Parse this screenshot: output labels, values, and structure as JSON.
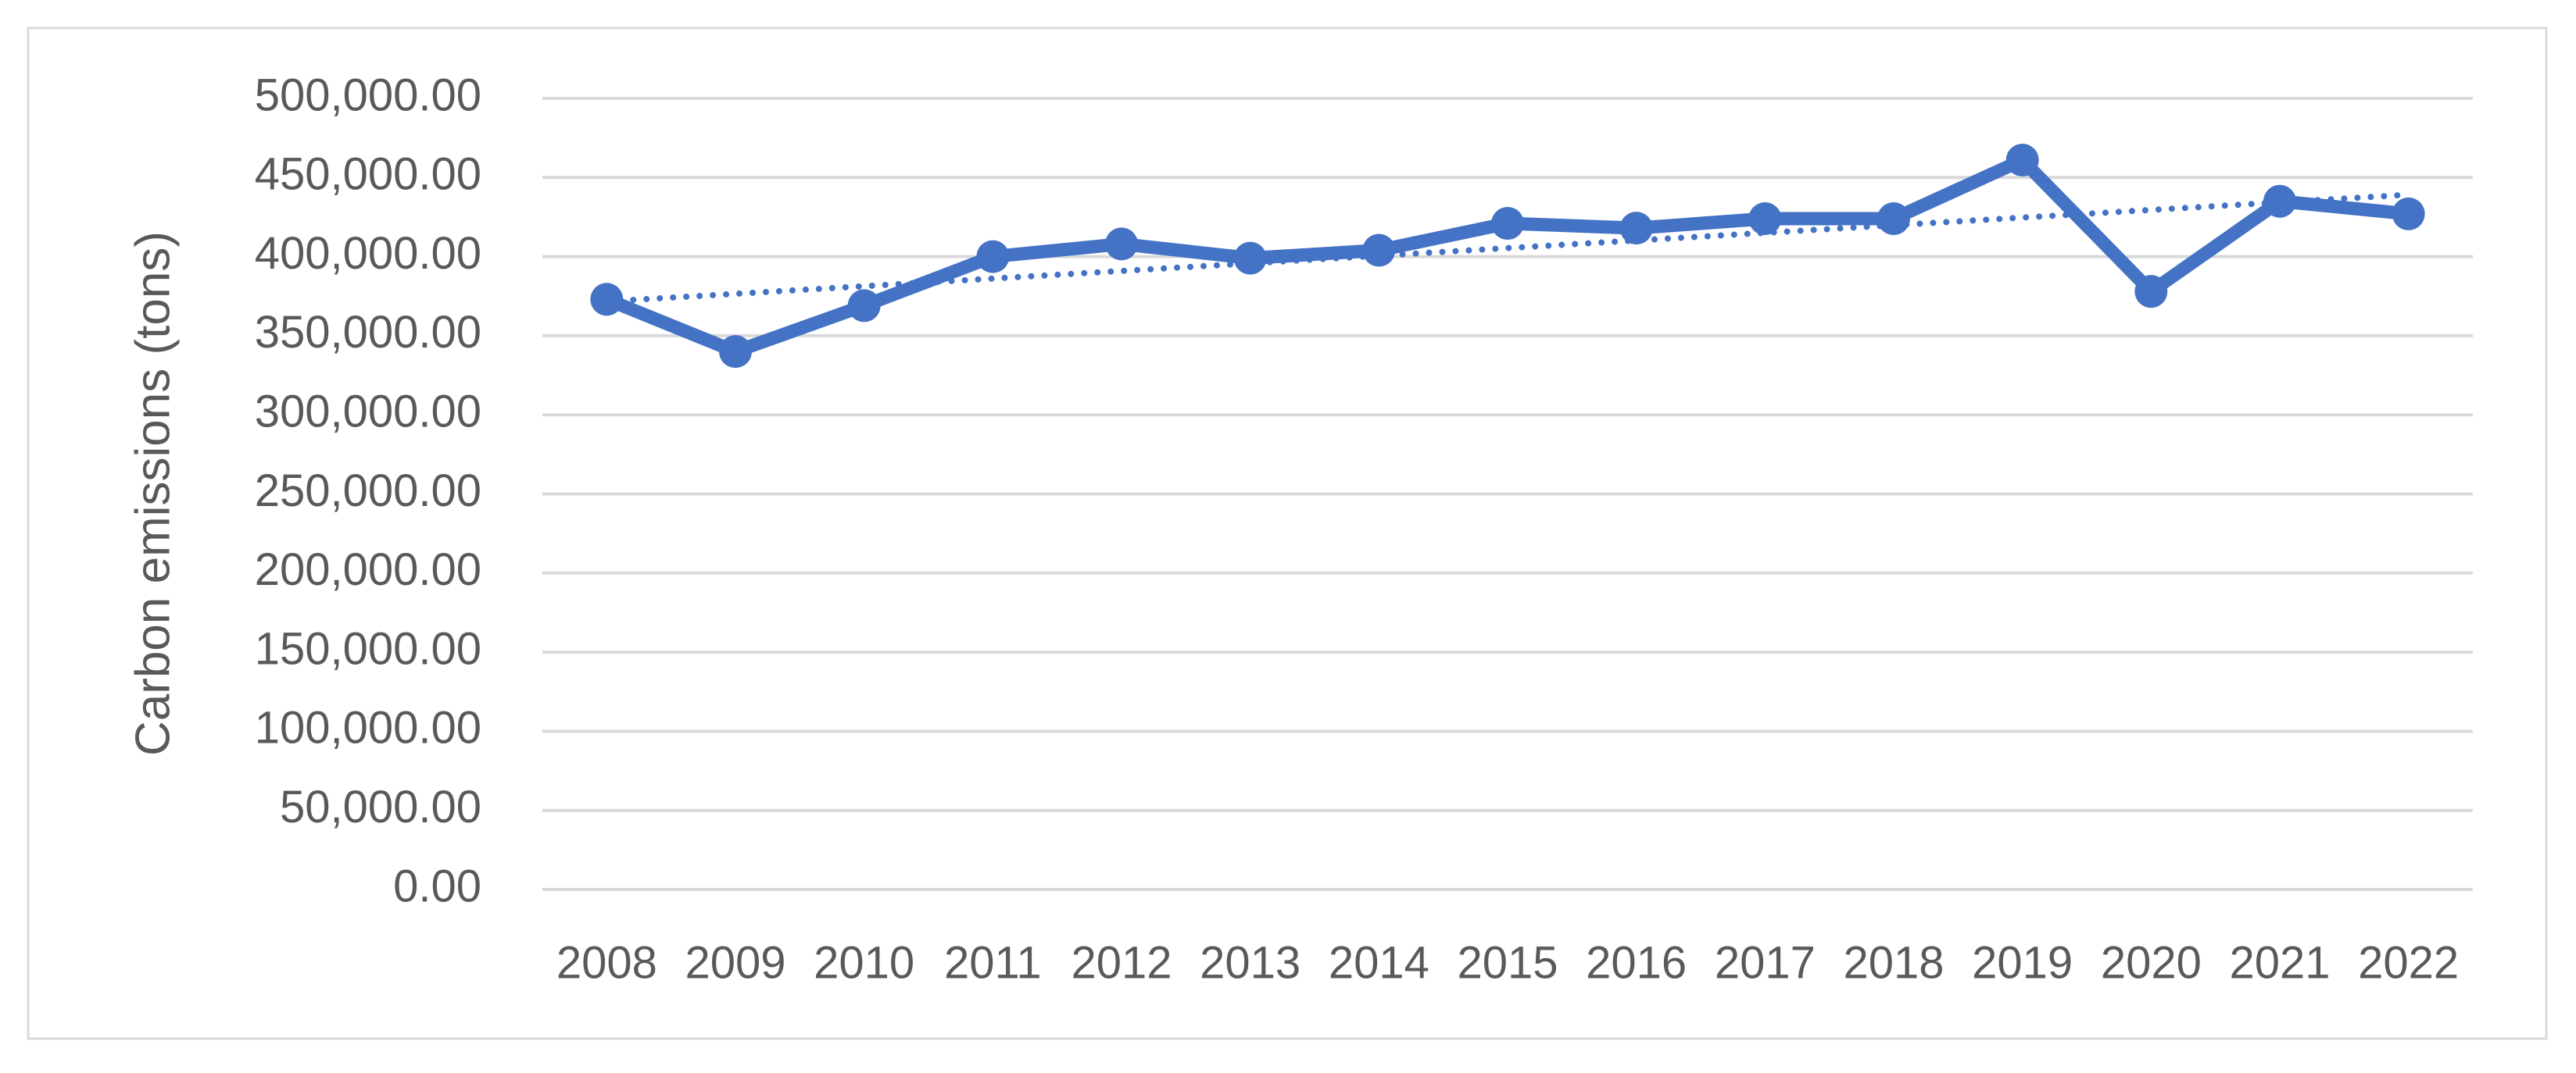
{
  "chart_data": {
    "type": "line",
    "y_axis_label": "Carbon emissions (tons)",
    "categories": [
      "2008",
      "2009",
      "2010",
      "2011",
      "2012",
      "2013",
      "2014",
      "2015",
      "2016",
      "2017",
      "2018",
      "2019",
      "2020",
      "2021",
      "2022"
    ],
    "values": [
      373000,
      340000,
      369000,
      400000,
      408000,
      399000,
      404000,
      421000,
      418000,
      424000,
      424000,
      461000,
      378000,
      435000,
      427000
    ],
    "color": "#4472c4",
    "markers": true,
    "trendline": "linear",
    "grid": true,
    "ylim": [
      0,
      500000
    ],
    "yticks": [
      {
        "value": 0,
        "label": "0.00"
      },
      {
        "value": 50000,
        "label": "50,000.00"
      },
      {
        "value": 100000,
        "label": "100,000.00"
      },
      {
        "value": 150000,
        "label": "150,000.00"
      },
      {
        "value": 200000,
        "label": "200,000.00"
      },
      {
        "value": 250000,
        "label": "250,000.00"
      },
      {
        "value": 300000,
        "label": "300,000.00"
      },
      {
        "value": 350000,
        "label": "350,000.00"
      },
      {
        "value": 400000,
        "label": "400,000.00"
      },
      {
        "value": 450000,
        "label": "450,000.00"
      },
      {
        "value": 500000,
        "label": "500,000.00"
      }
    ]
  }
}
